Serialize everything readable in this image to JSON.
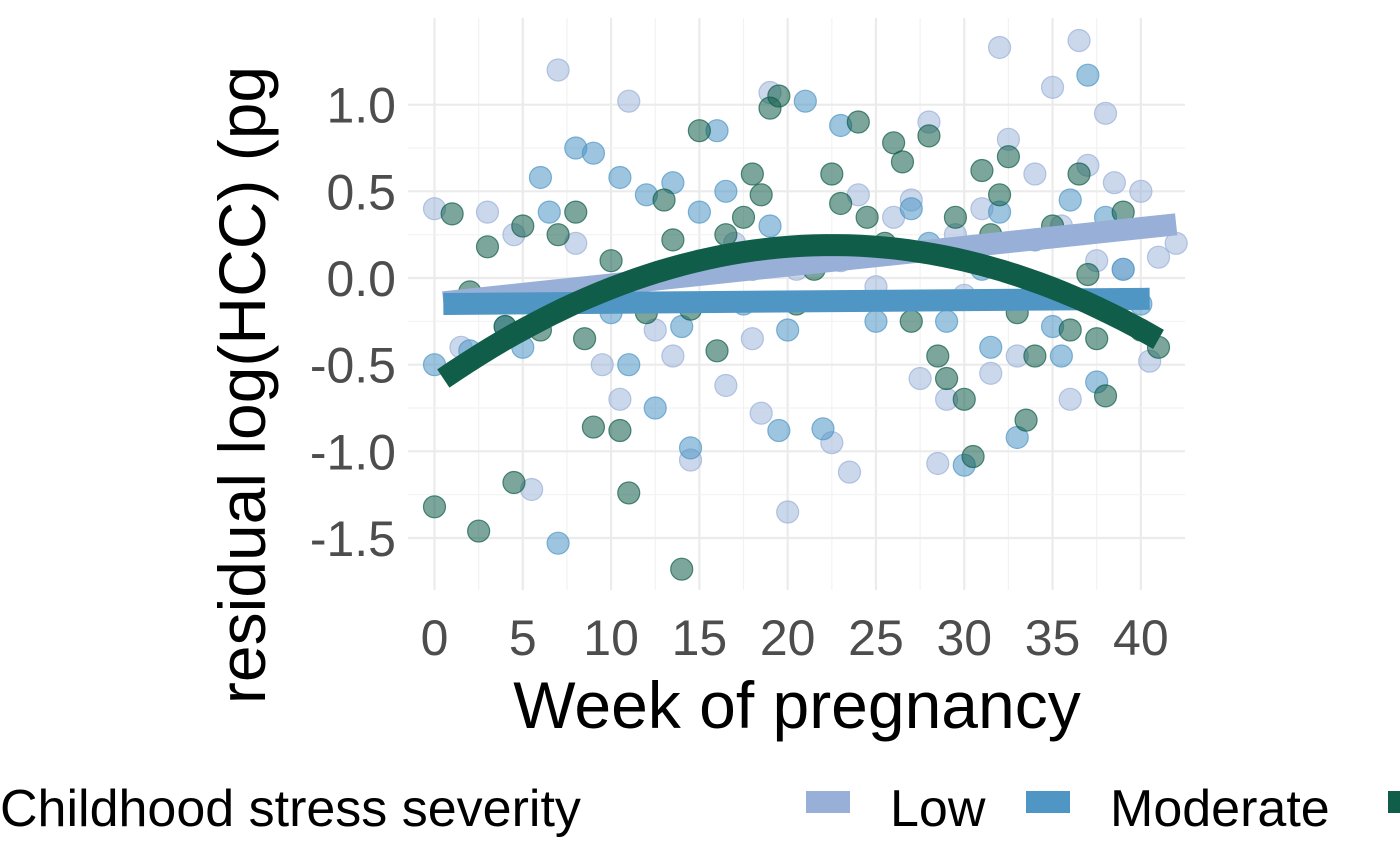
{
  "chart_data": {
    "type": "scatter",
    "xlabel": "Week of pregnancy",
    "ylabel": "residual log(HCC) (pg",
    "xlim": [
      -1.5,
      42.5
    ],
    "ylim": [
      -1.8,
      1.5
    ],
    "x_ticks": [
      0,
      5,
      10,
      15,
      20,
      25,
      30,
      35,
      40
    ],
    "x_tick_labels": [
      "0",
      "5",
      "10",
      "15",
      "20",
      "25",
      "30",
      "35",
      "40"
    ],
    "y_ticks": [
      -1.5,
      -1.0,
      -0.5,
      0.0,
      0.5,
      1.0
    ],
    "y_tick_labels": [
      "-1.5",
      "-1.0",
      "-0.5",
      "0.0",
      "0.5",
      "1.0"
    ],
    "grid": true,
    "legend": {
      "title": "Childhood stress severity",
      "position": "bottom",
      "entries": [
        "Low",
        "Moderate",
        ""
      ]
    },
    "series": [
      {
        "name": "Low",
        "color": "#98afd7",
        "trend": [
          [
            0.5,
            -0.14
          ],
          [
            42.0,
            0.31
          ]
        ],
        "points": [
          [
            0,
            0.4
          ],
          [
            1.5,
            -0.4
          ],
          [
            3.0,
            0.38
          ],
          [
            4.5,
            0.25
          ],
          [
            5.5,
            -1.22
          ],
          [
            7.0,
            1.2
          ],
          [
            8.0,
            0.2
          ],
          [
            9.5,
            -0.5
          ],
          [
            10.5,
            -0.7
          ],
          [
            11.0,
            1.02
          ],
          [
            12.5,
            -0.3
          ],
          [
            13.5,
            -0.45
          ],
          [
            14.5,
            -1.05
          ],
          [
            15.0,
            0.1
          ],
          [
            16.5,
            -0.62
          ],
          [
            17.0,
            0.2
          ],
          [
            18.0,
            -0.35
          ],
          [
            18.5,
            -0.78
          ],
          [
            19.0,
            1.07
          ],
          [
            20.0,
            -1.35
          ],
          [
            20.5,
            0.05
          ],
          [
            21.5,
            0.15
          ],
          [
            22.5,
            -0.95
          ],
          [
            23.0,
            0.1
          ],
          [
            23.5,
            -1.12
          ],
          [
            24.0,
            0.48
          ],
          [
            25.0,
            -0.05
          ],
          [
            26.0,
            0.35
          ],
          [
            27.0,
            0.45
          ],
          [
            27.5,
            -0.58
          ],
          [
            28.0,
            0.9
          ],
          [
            28.5,
            -1.07
          ],
          [
            29.0,
            -0.7
          ],
          [
            29.5,
            0.25
          ],
          [
            30.0,
            -0.1
          ],
          [
            31.0,
            0.4
          ],
          [
            31.5,
            -0.55
          ],
          [
            32.0,
            1.33
          ],
          [
            32.5,
            0.8
          ],
          [
            33.0,
            -0.45
          ],
          [
            34.0,
            0.6
          ],
          [
            35.0,
            1.1
          ],
          [
            35.5,
            0.3
          ],
          [
            36.0,
            -0.7
          ],
          [
            36.5,
            1.37
          ],
          [
            37.0,
            0.65
          ],
          [
            37.5,
            0.1
          ],
          [
            38.0,
            0.95
          ],
          [
            38.5,
            0.55
          ],
          [
            39.0,
            0.05
          ],
          [
            40.0,
            0.5
          ],
          [
            40.5,
            -0.48
          ],
          [
            41.0,
            0.12
          ],
          [
            42.0,
            0.2
          ]
        ]
      },
      {
        "name": "Moderate",
        "color": "#4f96c4",
        "trend": [
          [
            0.5,
            -0.15
          ],
          [
            40.5,
            -0.12
          ]
        ],
        "points": [
          [
            0,
            -0.5
          ],
          [
            2.0,
            -0.42
          ],
          [
            4.0,
            -0.28
          ],
          [
            5.0,
            -0.4
          ],
          [
            6.0,
            0.58
          ],
          [
            6.5,
            0.38
          ],
          [
            7.0,
            -1.53
          ],
          [
            8.0,
            0.75
          ],
          [
            9.0,
            0.72
          ],
          [
            10.0,
            -0.2
          ],
          [
            10.5,
            0.58
          ],
          [
            11.0,
            -0.5
          ],
          [
            12.0,
            0.48
          ],
          [
            12.5,
            -0.75
          ],
          [
            13.5,
            0.55
          ],
          [
            14.0,
            -0.28
          ],
          [
            14.5,
            -0.98
          ],
          [
            15.0,
            0.38
          ],
          [
            16.0,
            0.85
          ],
          [
            16.5,
            0.5
          ],
          [
            17.5,
            -0.15
          ],
          [
            18.0,
            0.05
          ],
          [
            19.0,
            0.3
          ],
          [
            19.5,
            -0.88
          ],
          [
            20.0,
            -0.3
          ],
          [
            21.0,
            1.02
          ],
          [
            22.0,
            -0.87
          ],
          [
            23.0,
            0.88
          ],
          [
            25.0,
            -0.25
          ],
          [
            27.0,
            0.4
          ],
          [
            28.0,
            0.2
          ],
          [
            29.0,
            -0.25
          ],
          [
            30.0,
            -1.08
          ],
          [
            31.0,
            0.05
          ],
          [
            31.5,
            -0.4
          ],
          [
            32.0,
            0.38
          ],
          [
            33.0,
            -0.92
          ],
          [
            34.0,
            0.22
          ],
          [
            35.0,
            -0.28
          ],
          [
            35.5,
            -0.45
          ],
          [
            36.0,
            0.45
          ],
          [
            37.0,
            1.17
          ],
          [
            37.5,
            -0.6
          ],
          [
            38.0,
            0.35
          ],
          [
            39.0,
            0.05
          ],
          [
            40.0,
            -0.15
          ]
        ]
      },
      {
        "name": "",
        "color": "#105d49",
        "trend": [
          [
            0.5,
            -0.58
          ],
          [
            41.0,
            -0.35
          ]
        ],
        "points": [
          [
            0,
            -1.32
          ],
          [
            1.0,
            0.37
          ],
          [
            2.0,
            -0.08
          ],
          [
            2.5,
            -1.46
          ],
          [
            3.0,
            0.18
          ],
          [
            4.0,
            -0.28
          ],
          [
            4.5,
            -1.18
          ],
          [
            5.0,
            0.3
          ],
          [
            6.0,
            -0.3
          ],
          [
            7.0,
            0.25
          ],
          [
            8.0,
            0.38
          ],
          [
            8.5,
            -0.35
          ],
          [
            9.0,
            -0.86
          ],
          [
            10.0,
            0.1
          ],
          [
            10.5,
            -0.88
          ],
          [
            11.0,
            -1.24
          ],
          [
            12.0,
            -0.2
          ],
          [
            13.0,
            0.45
          ],
          [
            13.5,
            0.22
          ],
          [
            14.0,
            -1.68
          ],
          [
            14.5,
            -0.18
          ],
          [
            15.0,
            0.85
          ],
          [
            16.0,
            -0.42
          ],
          [
            16.5,
            0.25
          ],
          [
            17.5,
            0.35
          ],
          [
            18.0,
            0.6
          ],
          [
            18.5,
            0.48
          ],
          [
            19.0,
            0.98
          ],
          [
            19.5,
            1.05
          ],
          [
            20.5,
            -0.15
          ],
          [
            21.5,
            0.05
          ],
          [
            22.5,
            0.6
          ],
          [
            23.0,
            0.43
          ],
          [
            24.0,
            0.9
          ],
          [
            24.5,
            0.35
          ],
          [
            25.5,
            0.2
          ],
          [
            26.0,
            0.78
          ],
          [
            26.5,
            0.67
          ],
          [
            27.0,
            -0.25
          ],
          [
            28.0,
            0.82
          ],
          [
            28.5,
            -0.45
          ],
          [
            29.0,
            -0.58
          ],
          [
            29.5,
            0.35
          ],
          [
            30.0,
            -0.7
          ],
          [
            30.5,
            -1.03
          ],
          [
            31.0,
            0.62
          ],
          [
            31.5,
            0.25
          ],
          [
            32.0,
            0.48
          ],
          [
            32.5,
            0.7
          ],
          [
            33.0,
            -0.2
          ],
          [
            33.5,
            -0.82
          ],
          [
            34.0,
            -0.45
          ],
          [
            35.0,
            0.3
          ],
          [
            36.0,
            -0.3
          ],
          [
            36.5,
            0.6
          ],
          [
            37.0,
            0.02
          ],
          [
            37.5,
            -0.35
          ],
          [
            38.0,
            -0.68
          ],
          [
            39.0,
            0.38
          ],
          [
            40.0,
            -0.3
          ],
          [
            41.0,
            -0.4
          ]
        ]
      }
    ]
  }
}
